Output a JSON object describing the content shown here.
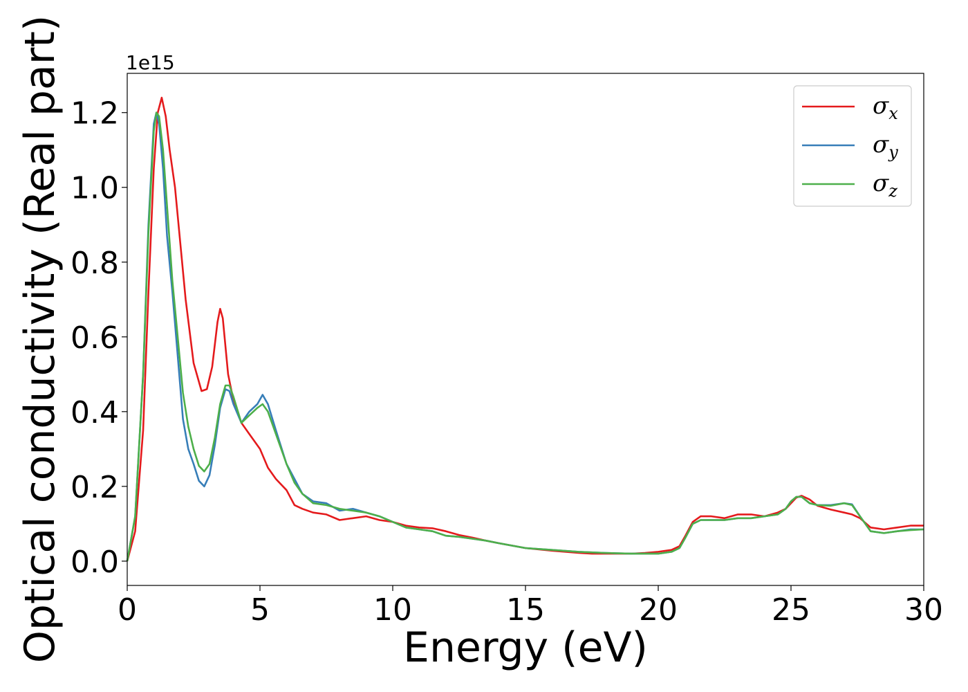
{
  "chart_data": {
    "type": "line",
    "xlabel": "Energy (eV)",
    "ylabel": "Optical conductivity (Real part)",
    "y_offset_label": "1e15",
    "xlim": [
      0,
      30
    ],
    "ylim": [
      -0.065,
      1.305
    ],
    "x_ticks": [
      0,
      5,
      10,
      15,
      20,
      25,
      30
    ],
    "x_tick_labels": [
      "0",
      "5",
      "10",
      "15",
      "20",
      "25",
      "30"
    ],
    "y_ticks": [
      0.0,
      0.2,
      0.4,
      0.6,
      0.8,
      1.0,
      1.2
    ],
    "y_tick_labels": [
      "0.0",
      "0.2",
      "0.4",
      "0.6",
      "0.8",
      "1.0",
      "1.2"
    ],
    "grid": false,
    "legend_position": "top-right",
    "series": [
      {
        "name": "σx",
        "symbol": "σ",
        "subscript": "x",
        "color": "#e41a1c",
        "x": [
          0,
          0.3,
          0.6,
          0.8,
          1.0,
          1.15,
          1.3,
          1.45,
          1.6,
          1.8,
          2.0,
          2.2,
          2.5,
          2.8,
          3.0,
          3.2,
          3.4,
          3.5,
          3.6,
          3.8,
          4.0,
          4.3,
          4.6,
          5.0,
          5.3,
          5.6,
          6.0,
          6.3,
          6.6,
          7.0,
          7.5,
          8.0,
          8.5,
          9.0,
          9.5,
          10,
          10.5,
          11,
          11.5,
          12,
          12.5,
          13,
          13.5,
          14,
          15,
          16,
          17,
          17.5,
          18,
          19,
          19.5,
          20,
          20.5,
          20.8,
          21.0,
          21.3,
          21.6,
          22,
          22.5,
          23,
          23.5,
          24,
          24.5,
          24.8,
          25.0,
          25.2,
          25.4,
          25.7,
          26,
          26.5,
          27,
          27.3,
          27.6,
          28,
          28.5,
          29,
          29.5,
          30
        ],
        "y": [
          0.0,
          0.08,
          0.35,
          0.72,
          1.05,
          1.2,
          1.24,
          1.19,
          1.1,
          1.0,
          0.85,
          0.7,
          0.53,
          0.455,
          0.46,
          0.52,
          0.64,
          0.675,
          0.65,
          0.5,
          0.43,
          0.37,
          0.34,
          0.3,
          0.25,
          0.22,
          0.19,
          0.15,
          0.14,
          0.13,
          0.125,
          0.11,
          0.115,
          0.12,
          0.11,
          0.105,
          0.095,
          0.09,
          0.088,
          0.08,
          0.07,
          0.063,
          0.055,
          0.048,
          0.035,
          0.028,
          0.022,
          0.02,
          0.02,
          0.02,
          0.022,
          0.025,
          0.03,
          0.04,
          0.065,
          0.105,
          0.12,
          0.12,
          0.115,
          0.125,
          0.125,
          0.12,
          0.13,
          0.14,
          0.155,
          0.17,
          0.175,
          0.165,
          0.148,
          0.138,
          0.13,
          0.125,
          0.115,
          0.09,
          0.085,
          0.09,
          0.095,
          0.095
        ]
      },
      {
        "name": "σy",
        "symbol": "σ",
        "subscript": "y",
        "color": "#377eb8",
        "x": [
          0,
          0.3,
          0.6,
          0.8,
          1.0,
          1.1,
          1.2,
          1.35,
          1.5,
          1.7,
          1.9,
          2.1,
          2.3,
          2.5,
          2.7,
          2.9,
          3.1,
          3.3,
          3.5,
          3.7,
          3.85,
          4.0,
          4.3,
          4.6,
          4.9,
          5.1,
          5.3,
          5.6,
          6.0,
          6.3,
          6.6,
          7.0,
          7.5,
          8.0,
          8.5,
          9.0,
          9.5,
          10,
          10.5,
          11,
          11.5,
          12,
          12.5,
          13,
          13.5,
          14,
          15,
          16,
          17,
          18,
          19,
          19.5,
          20,
          20.5,
          20.8,
          21.0,
          21.3,
          21.6,
          22,
          22.5,
          23,
          23.5,
          24,
          24.5,
          24.8,
          25.0,
          25.2,
          25.4,
          25.7,
          26,
          26.5,
          27,
          27.3,
          27.6,
          28,
          28.5,
          29,
          29.5,
          30
        ],
        "y": [
          0.0,
          0.12,
          0.5,
          0.9,
          1.17,
          1.2,
          1.17,
          1.05,
          0.87,
          0.72,
          0.55,
          0.38,
          0.3,
          0.26,
          0.215,
          0.2,
          0.23,
          0.31,
          0.41,
          0.46,
          0.455,
          0.42,
          0.37,
          0.4,
          0.42,
          0.445,
          0.42,
          0.35,
          0.26,
          0.22,
          0.18,
          0.16,
          0.155,
          0.135,
          0.14,
          0.13,
          0.12,
          0.105,
          0.09,
          0.085,
          0.08,
          0.068,
          0.065,
          0.06,
          0.055,
          0.048,
          0.035,
          0.03,
          0.025,
          0.022,
          0.02,
          0.02,
          0.02,
          0.025,
          0.035,
          0.06,
          0.1,
          0.11,
          0.11,
          0.11,
          0.115,
          0.115,
          0.12,
          0.125,
          0.14,
          0.16,
          0.172,
          0.172,
          0.155,
          0.15,
          0.15,
          0.155,
          0.152,
          0.12,
          0.08,
          0.075,
          0.08,
          0.085,
          0.085
        ]
      },
      {
        "name": "σz",
        "symbol": "σ",
        "subscript": "z",
        "color": "#4daf4a",
        "x": [
          0,
          0.3,
          0.6,
          0.8,
          1.0,
          1.1,
          1.2,
          1.35,
          1.5,
          1.7,
          1.9,
          2.1,
          2.3,
          2.5,
          2.7,
          2.9,
          3.1,
          3.3,
          3.5,
          3.7,
          3.85,
          4.0,
          4.3,
          4.6,
          4.9,
          5.1,
          5.3,
          5.6,
          6.0,
          6.3,
          6.6,
          7.0,
          7.5,
          8.0,
          8.5,
          9.0,
          9.5,
          10,
          10.5,
          11,
          11.5,
          12,
          12.5,
          13,
          13.5,
          14,
          15,
          16,
          17,
          18,
          19,
          19.5,
          20,
          20.5,
          20.8,
          21.0,
          21.3,
          21.6,
          22,
          22.5,
          23,
          23.5,
          24,
          24.5,
          24.8,
          25.0,
          25.2,
          25.4,
          25.7,
          26,
          26.5,
          27,
          27.3,
          27.6,
          28,
          28.5,
          29,
          29.5,
          30
        ],
        "y": [
          0.0,
          0.12,
          0.5,
          0.88,
          1.15,
          1.2,
          1.19,
          1.1,
          0.95,
          0.75,
          0.6,
          0.45,
          0.36,
          0.3,
          0.255,
          0.24,
          0.26,
          0.33,
          0.42,
          0.47,
          0.47,
          0.44,
          0.37,
          0.39,
          0.41,
          0.42,
          0.4,
          0.34,
          0.26,
          0.21,
          0.18,
          0.155,
          0.15,
          0.14,
          0.135,
          0.13,
          0.12,
          0.105,
          0.09,
          0.085,
          0.08,
          0.068,
          0.065,
          0.06,
          0.055,
          0.048,
          0.035,
          0.03,
          0.025,
          0.022,
          0.02,
          0.02,
          0.02,
          0.025,
          0.035,
          0.06,
          0.1,
          0.11,
          0.11,
          0.11,
          0.115,
          0.115,
          0.12,
          0.125,
          0.14,
          0.16,
          0.172,
          0.172,
          0.155,
          0.15,
          0.148,
          0.155,
          0.15,
          0.12,
          0.08,
          0.075,
          0.08,
          0.083,
          0.085
        ]
      }
    ]
  }
}
